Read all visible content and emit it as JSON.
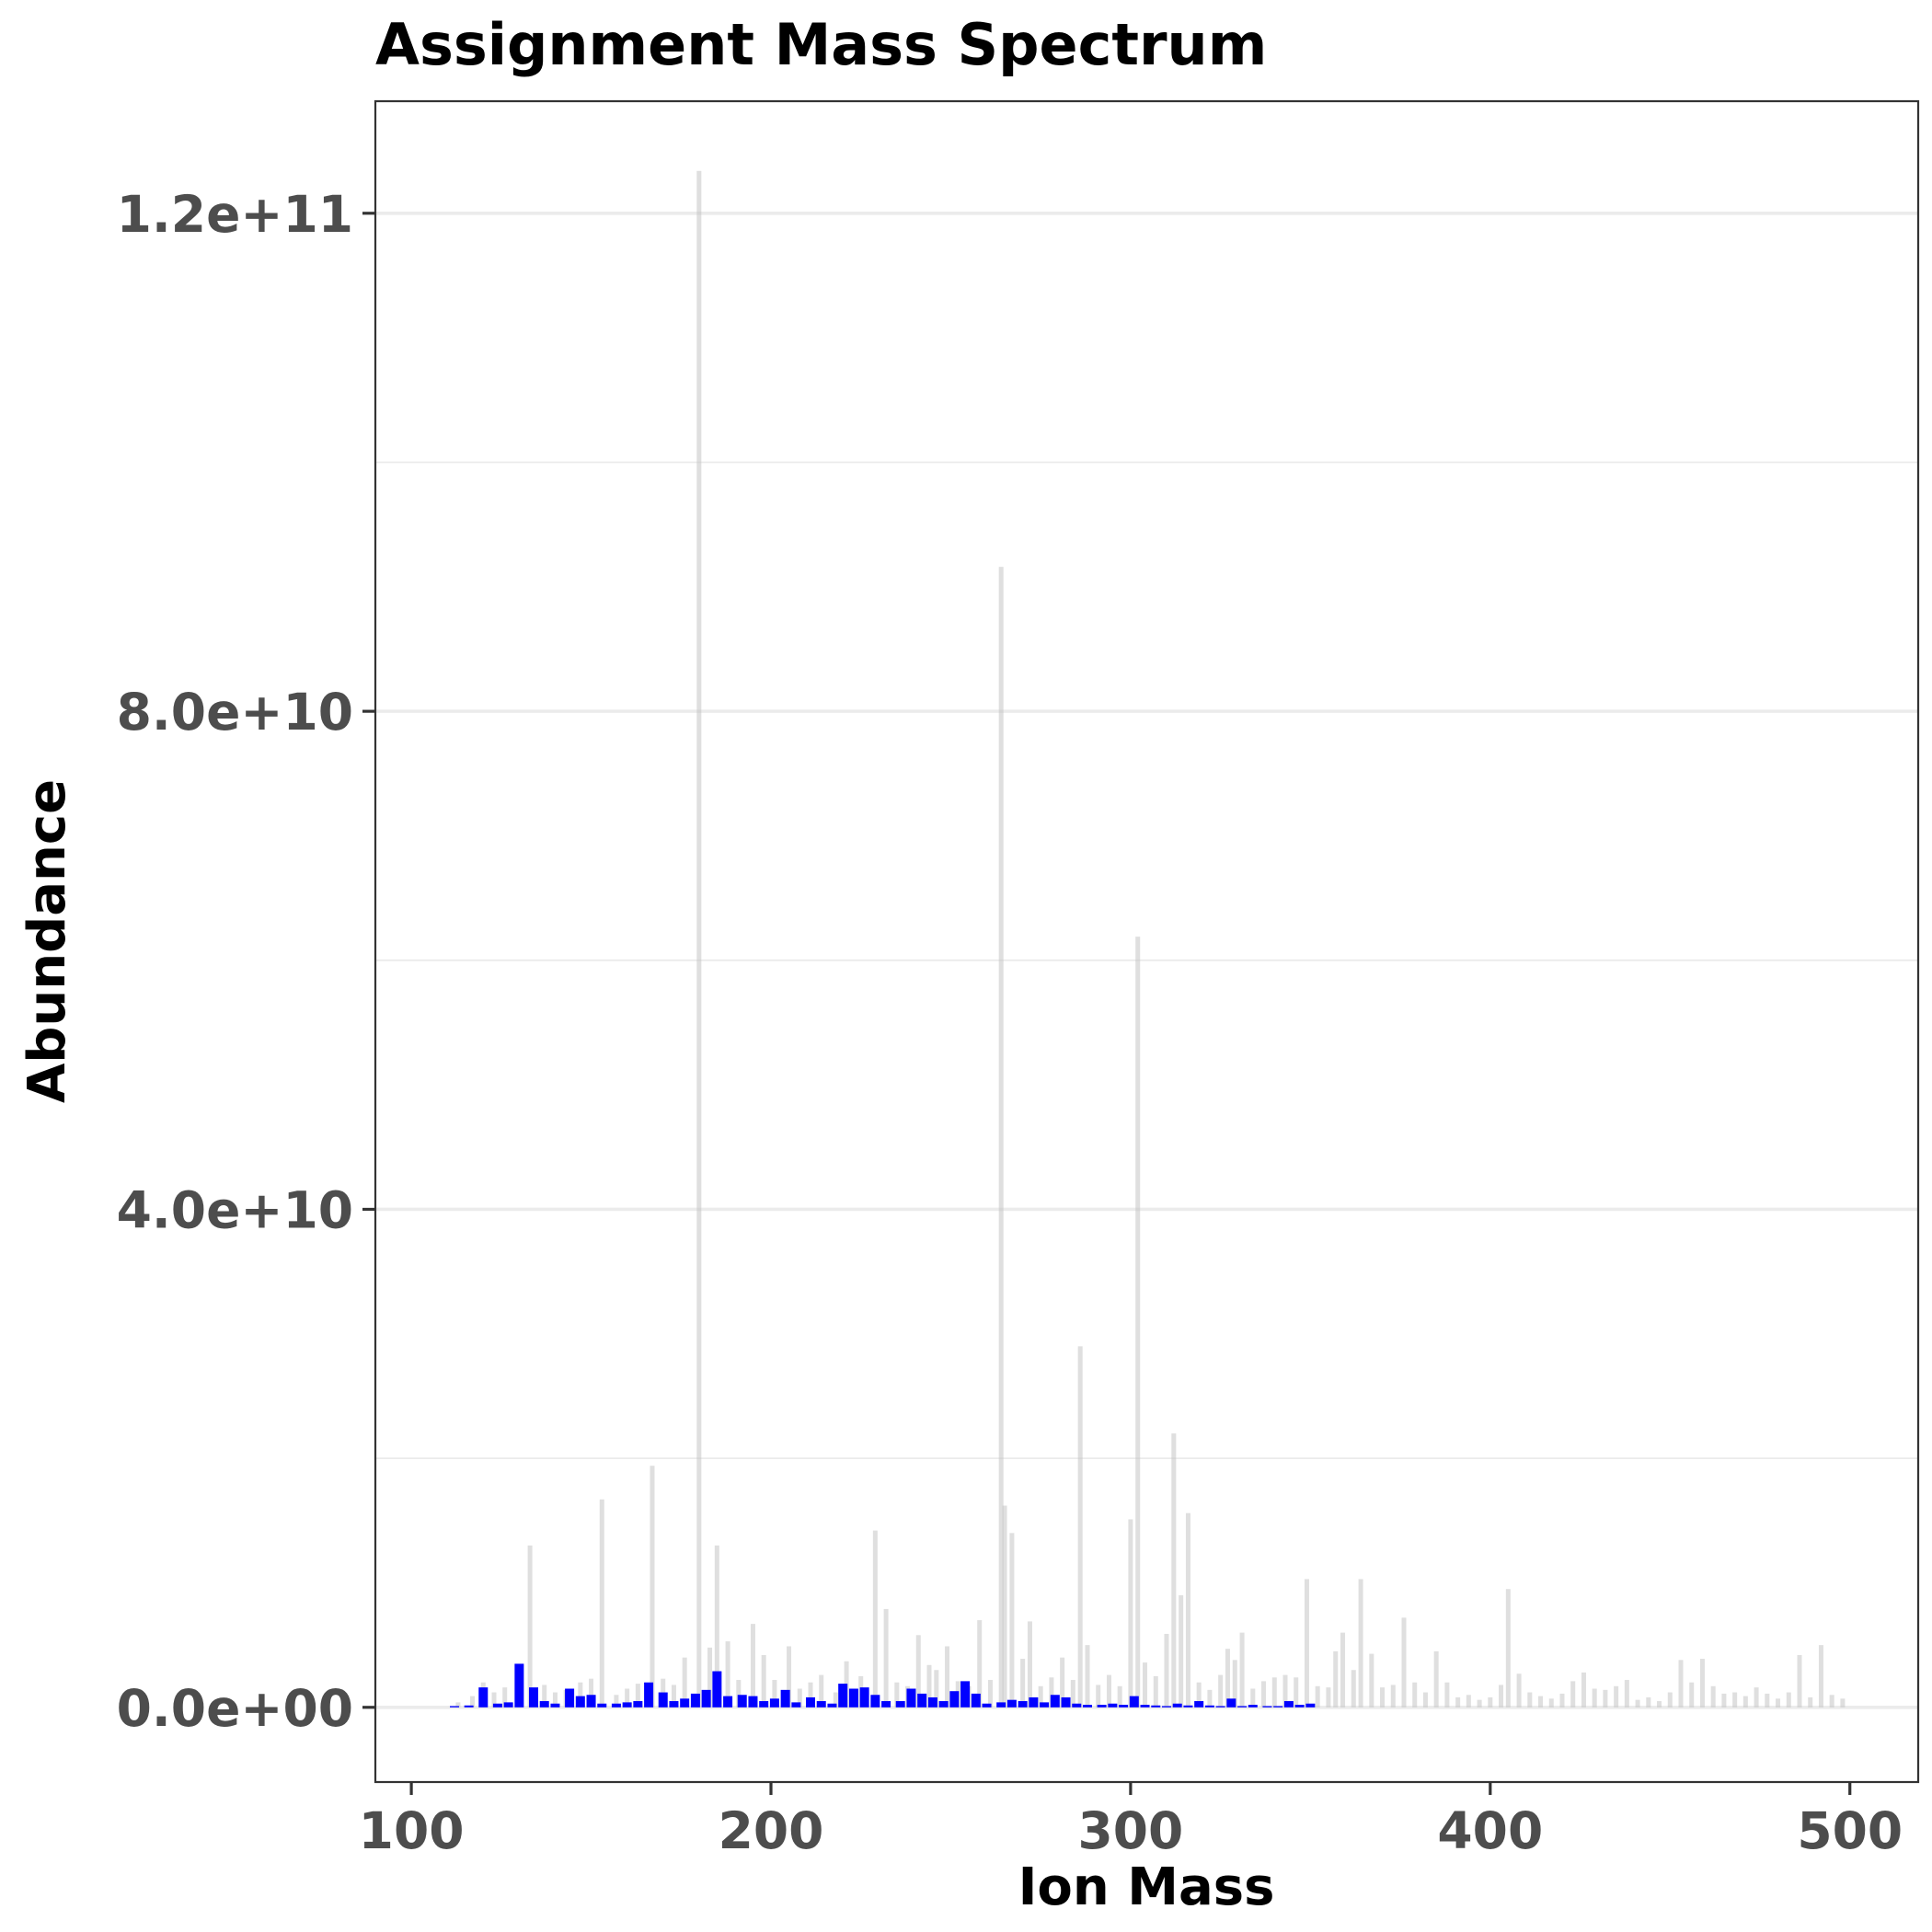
{
  "chart_data": {
    "type": "bar",
    "title": "Assignment Mass Spectrum",
    "xlabel": "Ion Mass",
    "ylabel": "Abundance",
    "xlim": [
      90,
      519
    ],
    "ylim": [
      -6000000000,
      129000000000
    ],
    "x_ticks": [
      100,
      200,
      300,
      400,
      500
    ],
    "x_tick_labels": [
      "100",
      "200",
      "300",
      "400",
      "500"
    ],
    "y_ticks": [
      0,
      40000000000,
      80000000000,
      120000000000
    ],
    "y_tick_labels": [
      "0.0e+00",
      "4.0e+10",
      "8.0e+10",
      "1.2e+11"
    ],
    "grid": true,
    "legend": "none",
    "colors": {
      "assigned": "#0000ff",
      "unassigned": "#bfbfbf"
    },
    "series": [
      {
        "name": "",
        "color": "#bfbfbf",
        "opacity": 0.5,
        "x": [
          113,
          117,
          120,
          123,
          126,
          130,
          133,
          137,
          140,
          143,
          147,
          150,
          153,
          157,
          160,
          163,
          167,
          170,
          173,
          176,
          180,
          183,
          185,
          188,
          191,
          195,
          198,
          201,
          205,
          208,
          211,
          214,
          218,
          221,
          225,
          229,
          232,
          235,
          238,
          241,
          244,
          246,
          249,
          252,
          255,
          258,
          261,
          264,
          265,
          267,
          270,
          272,
          275,
          278,
          281,
          284,
          286,
          288,
          291,
          294,
          297,
          300,
          302,
          304,
          307,
          310,
          312,
          314,
          316,
          319,
          322,
          325,
          327,
          329,
          331,
          334,
          337,
          340,
          343,
          346,
          349,
          352,
          355,
          357,
          359,
          362,
          364,
          367,
          370,
          373,
          376,
          379,
          382,
          385,
          388,
          391,
          394,
          397,
          400,
          403,
          405,
          408,
          411,
          414,
          417,
          420,
          423,
          426,
          429,
          432,
          435,
          438,
          441,
          444,
          447,
          450,
          453,
          456,
          459,
          462,
          465,
          468,
          471,
          474,
          477,
          480,
          483,
          486,
          489,
          492,
          495,
          498
        ],
        "values": [
          400000000,
          900000000,
          2000000000,
          1200000000,
          1600000000,
          2800000000,
          13000000000,
          1800000000,
          1200000000,
          1400000000,
          2000000000,
          2300000000,
          16700000000,
          1000000000,
          1500000000,
          1900000000,
          19400000000,
          2300000000,
          1800000000,
          4000000000,
          123400000000,
          4800000000,
          13000000000,
          5300000000,
          2200000000,
          6700000000,
          4200000000,
          2200000000,
          4900000000,
          1500000000,
          2000000000,
          2600000000,
          1200000000,
          3700000000,
          2500000000,
          14200000000,
          7900000000,
          2000000000,
          1700000000,
          5800000000,
          3400000000,
          3000000000,
          4900000000,
          2100000000,
          1700000000,
          7000000000,
          2200000000,
          91600000000,
          16200000000,
          14000000000,
          3900000000,
          6900000000,
          1700000000,
          2400000000,
          4000000000,
          2200000000,
          29000000000,
          5000000000,
          1800000000,
          2600000000,
          1700000000,
          15100000000,
          61900000000,
          3600000000,
          2500000000,
          5900000000,
          22000000000,
          9000000000,
          15600000000,
          2000000000,
          1400000000,
          2600000000,
          4700000000,
          3800000000,
          6000000000,
          1500000000,
          2100000000,
          2400000000,
          2600000000,
          2400000000,
          10300000000,
          1700000000,
          1600000000,
          4500000000,
          6000000000,
          3000000000,
          10300000000,
          4300000000,
          1600000000,
          1800000000,
          7200000000,
          2000000000,
          1200000000,
          4500000000,
          2000000000,
          800000000,
          1000000000,
          600000000,
          800000000,
          1800000000,
          9500000000,
          2700000000,
          1200000000,
          900000000,
          700000000,
          1100000000,
          2100000000,
          2800000000,
          1500000000,
          1400000000,
          1700000000,
          2200000000,
          600000000,
          800000000,
          500000000,
          1200000000,
          3800000000,
          2000000000,
          3900000000,
          1700000000,
          1100000000,
          1200000000,
          900000000,
          1600000000,
          1100000000,
          700000000,
          1200000000,
          4200000000,
          800000000,
          5000000000,
          1000000000,
          700000000
        ]
      },
      {
        "name": "",
        "color": "#0000ff",
        "opacity": 1,
        "x": [
          112,
          116,
          120,
          124,
          127,
          130,
          134,
          137,
          140,
          144,
          147,
          150,
          153,
          157,
          160,
          163,
          166,
          170,
          173,
          176,
          179,
          182,
          185,
          188,
          192,
          195,
          198,
          201,
          204,
          207,
          211,
          214,
          217,
          220,
          223,
          226,
          229,
          232,
          236,
          239,
          242,
          245,
          248,
          251,
          254,
          257,
          260,
          264,
          267,
          270,
          273,
          276,
          279,
          282,
          285,
          288,
          292,
          295,
          298,
          301,
          304,
          307,
          310,
          313,
          316,
          319,
          322,
          325,
          328,
          331,
          334,
          338,
          341,
          344,
          347,
          350
        ],
        "values": [
          100000000,
          150000000,
          1600000000,
          300000000,
          400000000,
          3500000000,
          1600000000,
          500000000,
          300000000,
          1500000000,
          900000000,
          1000000000,
          300000000,
          300000000,
          400000000,
          500000000,
          2000000000,
          1200000000,
          500000000,
          700000000,
          1100000000,
          1400000000,
          2900000000,
          900000000,
          1000000000,
          900000000,
          500000000,
          700000000,
          1400000000,
          400000000,
          800000000,
          500000000,
          300000000,
          1900000000,
          1500000000,
          1600000000,
          1000000000,
          500000000,
          500000000,
          1500000000,
          1100000000,
          800000000,
          500000000,
          1300000000,
          2100000000,
          1100000000,
          300000000,
          400000000,
          600000000,
          500000000,
          800000000,
          400000000,
          1000000000,
          800000000,
          300000000,
          200000000,
          200000000,
          300000000,
          200000000,
          900000000,
          200000000,
          150000000,
          100000000,
          300000000,
          150000000,
          500000000,
          150000000,
          100000000,
          700000000,
          100000000,
          200000000,
          100000000,
          100000000,
          500000000,
          200000000,
          300000000
        ]
      }
    ]
  }
}
